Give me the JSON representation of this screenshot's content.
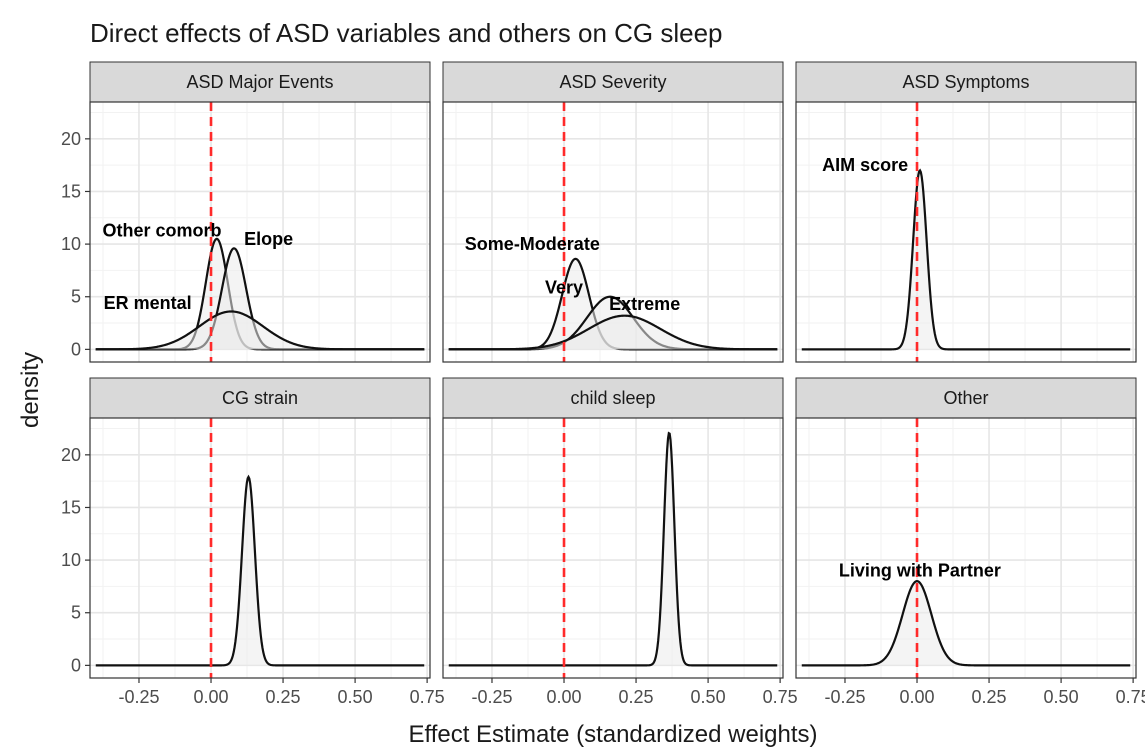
{
  "chart_data": {
    "type": "area",
    "title": "Direct effects of ASD variables and others on CG sleep",
    "xlabel": "Effect Estimate (standardized weights)",
    "ylabel": "density",
    "xlim": [
      -0.42,
      0.76
    ],
    "ylim": [
      -1.2,
      23.5
    ],
    "x_ticks": [
      -0.25,
      0.0,
      0.25,
      0.5,
      0.75
    ],
    "x_tick_labels": [
      "-0.25",
      "0.00",
      "0.25",
      "0.50",
      "0.75"
    ],
    "y_ticks": [
      0,
      5,
      10,
      15,
      20
    ],
    "y_tick_labels": [
      "0",
      "5",
      "10",
      "15",
      "20"
    ],
    "reference_line": {
      "x": 0,
      "color": "#ff2a2a",
      "style": "dashed"
    },
    "grid": true,
    "fill_color": "#ebebeb",
    "line_color": "#111111",
    "panels": [
      {
        "strip": "ASD Major Events",
        "series": [
          {
            "label": "Other comorb",
            "mean": 0.02,
            "peak": 10.5,
            "label_x": -0.17,
            "label_y": 11.3
          },
          {
            "label": "Elope",
            "mean": 0.08,
            "peak": 9.6,
            "label_x": 0.2,
            "label_y": 10.5
          },
          {
            "label": "ER mental",
            "mean": 0.07,
            "peak": 3.6,
            "label_x": -0.22,
            "label_y": 4.4
          }
        ]
      },
      {
        "strip": "ASD Severity",
        "series": [
          {
            "label": "Some-Moderate",
            "mean": 0.04,
            "peak": 8.6,
            "label_x": -0.11,
            "label_y": 10.0
          },
          {
            "label": "Very",
            "mean": 0.16,
            "peak": 5.0,
            "label_x": 0.0,
            "label_y": 5.9
          },
          {
            "label": "Extreme",
            "mean": 0.21,
            "peak": 3.2,
            "label_x": 0.28,
            "label_y": 4.3
          }
        ]
      },
      {
        "strip": "ASD Symptoms",
        "series": [
          {
            "label": "AIM score",
            "mean": 0.01,
            "peak": 17.0,
            "label_x": -0.18,
            "label_y": 17.5
          }
        ]
      },
      {
        "strip": "CG strain",
        "series": [
          {
            "label": "",
            "mean": 0.13,
            "peak": 17.9
          }
        ]
      },
      {
        "strip": "child sleep",
        "series": [
          {
            "label": "",
            "mean": 0.365,
            "peak": 22.1
          }
        ]
      },
      {
        "strip": "Other",
        "series": [
          {
            "label": "Living with Partner",
            "mean": 0.0,
            "peak": 8.0,
            "label_x": 0.01,
            "label_y": 9.0
          }
        ]
      }
    ]
  }
}
